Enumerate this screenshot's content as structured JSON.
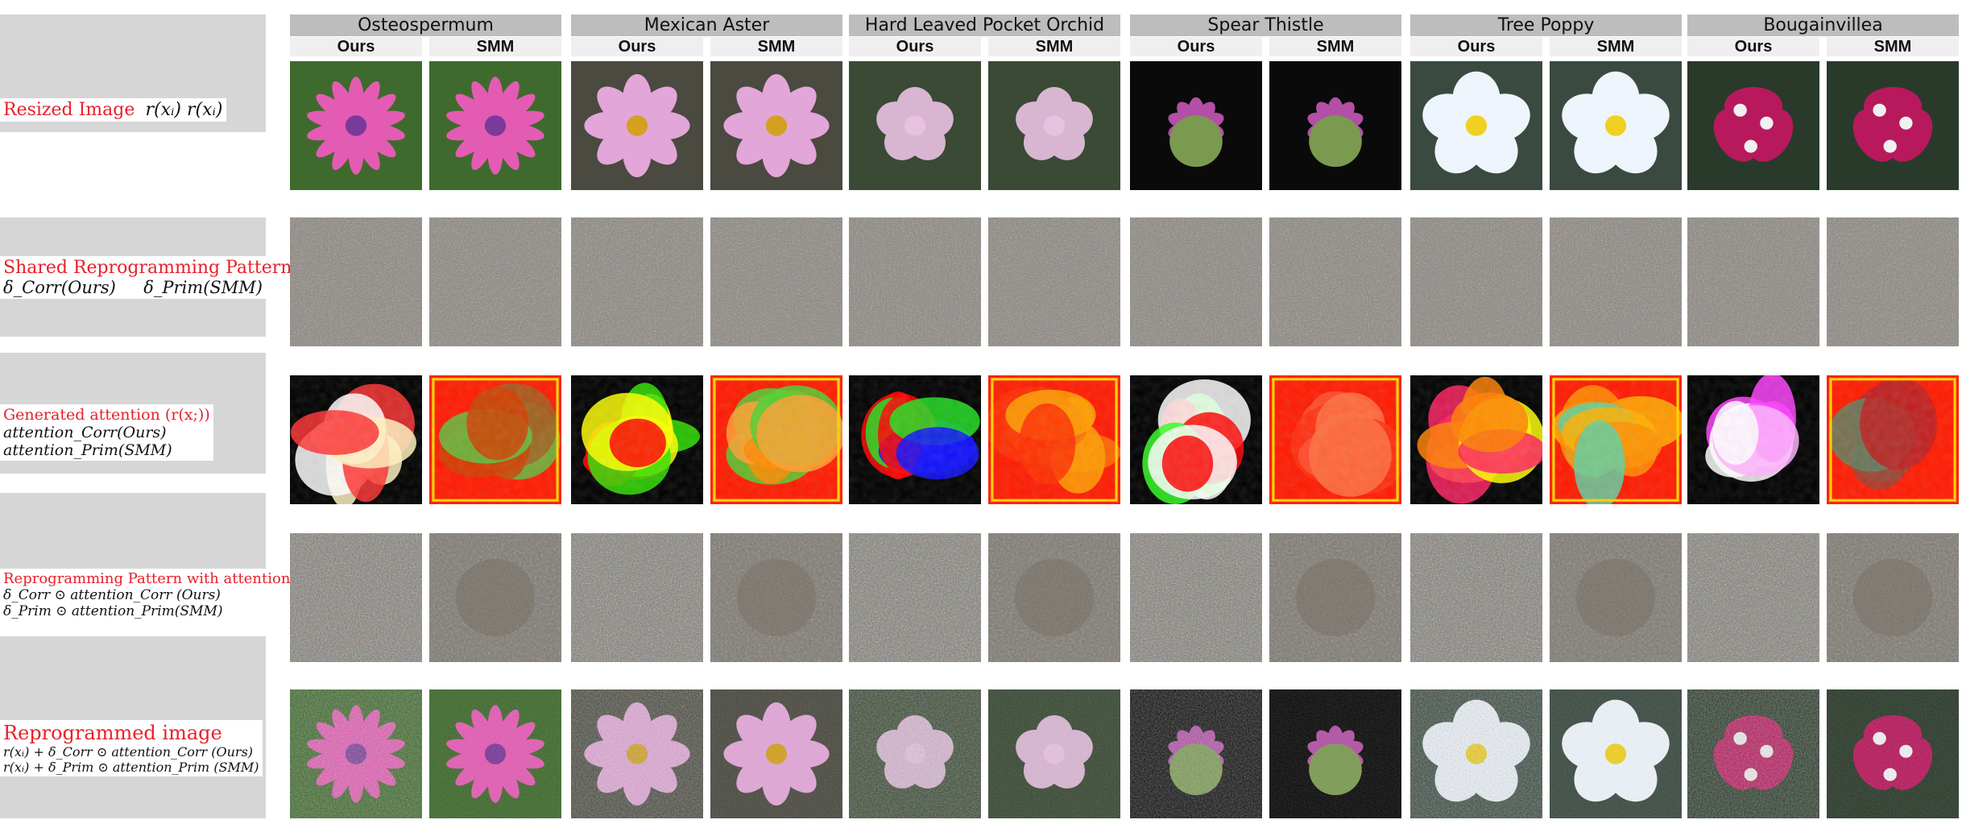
{
  "columns": [
    {
      "class": "Osteospermum",
      "methods": [
        "Ours",
        "SMM"
      ]
    },
    {
      "class": "Mexican Aster",
      "methods": [
        "Ours",
        "SMM"
      ]
    },
    {
      "class": "Hard Leaved Pocket Orchid",
      "methods": [
        "Ours",
        "SMM"
      ]
    },
    {
      "class": "Spear Thistle",
      "methods": [
        "Ours",
        "SMM"
      ]
    },
    {
      "class": "Tree Poppy",
      "methods": [
        "Ours",
        "SMM"
      ]
    },
    {
      "class": "Bougainvillea",
      "methods": [
        "Ours",
        "SMM"
      ]
    }
  ],
  "rows": {
    "resized": {
      "title": "Resized Image",
      "formula": "r(xᵢ)  r(xᵢ)"
    },
    "pattern": {
      "title": "Shared Reprogramming Pattern",
      "formula_ours": "δ_Corr(Ours)",
      "formula_smm": "δ_Prim(SMM)"
    },
    "attention": {
      "title": "Generated attention (r(x;))",
      "line1": "attention_Corr(Ours)",
      "line2": "attention_Prim(SMM)"
    },
    "pattern_attention": {
      "title": "Reprogramming Pattern with attention",
      "line1": "δ_Corr ⊙ attention_Corr (Ours)",
      "line2": "δ_Prim ⊙ attention_Prim(SMM)"
    },
    "reprogrammed": {
      "title": "Reprogrammed image",
      "line1": "r(xᵢ) + δ_Corr ⊙ attention_Corr (Ours)",
      "line2": "r(xᵢ) + δ_Prim ⊙ attention_Prim (SMM)"
    }
  },
  "colors": {
    "label_red": "#e8202a",
    "header_gray": "#bdbdbd",
    "method_gray": "#efefef",
    "band_gray": "#d6d6d6",
    "flowers": [
      "#e45bb4",
      "#e2a6d8",
      "#d8b6d2",
      "#b34fa6",
      "#eef4fb",
      "#b8195c"
    ],
    "centers": [
      "#7a3a9a",
      "#d4a020",
      "#e8c0e0",
      "#7a9a50",
      "#f0d020",
      "#f0f0f0"
    ],
    "backgrounds": [
      "#3f6a2d",
      "#4a4a40",
      "#3a4a35",
      "#0a0a0a",
      "#3a4a40",
      "#2a3a2a"
    ]
  }
}
